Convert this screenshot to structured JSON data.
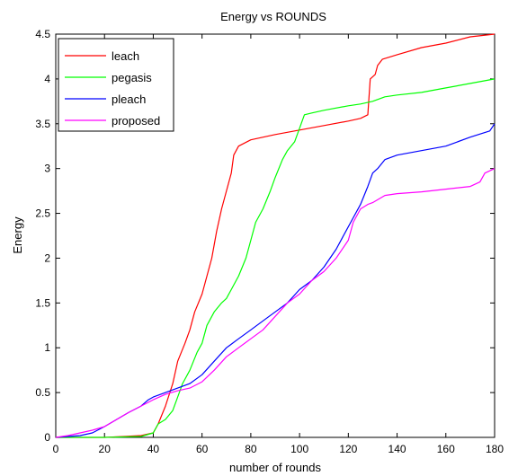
{
  "chart_data": {
    "type": "line",
    "title": "Energy vs ROUNDS",
    "xlabel": "number of rounds",
    "ylabel": "Energy",
    "xlim": [
      0,
      180
    ],
    "ylim": [
      0,
      4.5
    ],
    "xticks": [
      0,
      20,
      40,
      60,
      80,
      100,
      120,
      140,
      160,
      180
    ],
    "yticks": [
      0,
      0.5,
      1,
      1.5,
      2,
      2.5,
      3,
      3.5,
      4,
      4.5
    ],
    "xtick_labels": [
      "0",
      "20",
      "40",
      "60",
      "80",
      "100",
      "120",
      "140",
      "160",
      "180"
    ],
    "ytick_labels": [
      "0",
      "0.5",
      "1",
      "1.5",
      "2",
      "2.5",
      "3",
      "3.5",
      "4",
      "4.5"
    ],
    "grid": false,
    "legend_position": "top-left",
    "series": [
      {
        "name": "leach",
        "color": "#ff0000",
        "points": [
          [
            0,
            0
          ],
          [
            20,
            0
          ],
          [
            28,
            0.01
          ],
          [
            35,
            0.02
          ],
          [
            40,
            0.05
          ],
          [
            42,
            0.15
          ],
          [
            45,
            0.35
          ],
          [
            48,
            0.6
          ],
          [
            50,
            0.85
          ],
          [
            53,
            1.05
          ],
          [
            55,
            1.2
          ],
          [
            57,
            1.4
          ],
          [
            60,
            1.6
          ],
          [
            62,
            1.8
          ],
          [
            64,
            2.0
          ],
          [
            66,
            2.3
          ],
          [
            68,
            2.55
          ],
          [
            70,
            2.75
          ],
          [
            72,
            2.95
          ],
          [
            73,
            3.15
          ],
          [
            75,
            3.25
          ],
          [
            80,
            3.32
          ],
          [
            90,
            3.38
          ],
          [
            100,
            3.43
          ],
          [
            110,
            3.48
          ],
          [
            120,
            3.53
          ],
          [
            125,
            3.56
          ],
          [
            128,
            3.6
          ],
          [
            129,
            4.0
          ],
          [
            131,
            4.05
          ],
          [
            132,
            4.15
          ],
          [
            134,
            4.22
          ],
          [
            140,
            4.27
          ],
          [
            150,
            4.35
          ],
          [
            160,
            4.4
          ],
          [
            170,
            4.47
          ],
          [
            180,
            4.5
          ]
        ]
      },
      {
        "name": "pegasis",
        "color": "#00ff00",
        "points": [
          [
            0,
            0
          ],
          [
            20,
            0
          ],
          [
            35,
            0.01
          ],
          [
            40,
            0.05
          ],
          [
            42,
            0.15
          ],
          [
            45,
            0.2
          ],
          [
            48,
            0.3
          ],
          [
            50,
            0.45
          ],
          [
            52,
            0.6
          ],
          [
            55,
            0.75
          ],
          [
            58,
            0.95
          ],
          [
            60,
            1.05
          ],
          [
            62,
            1.25
          ],
          [
            65,
            1.4
          ],
          [
            68,
            1.5
          ],
          [
            70,
            1.55
          ],
          [
            72,
            1.65
          ],
          [
            75,
            1.8
          ],
          [
            78,
            2.0
          ],
          [
            80,
            2.2
          ],
          [
            82,
            2.4
          ],
          [
            85,
            2.55
          ],
          [
            88,
            2.75
          ],
          [
            90,
            2.9
          ],
          [
            93,
            3.1
          ],
          [
            95,
            3.2
          ],
          [
            98,
            3.3
          ],
          [
            100,
            3.45
          ],
          [
            102,
            3.6
          ],
          [
            105,
            3.62
          ],
          [
            110,
            3.65
          ],
          [
            120,
            3.7
          ],
          [
            125,
            3.72
          ],
          [
            130,
            3.75
          ],
          [
            135,
            3.8
          ],
          [
            140,
            3.82
          ],
          [
            150,
            3.85
          ],
          [
            160,
            3.9
          ],
          [
            170,
            3.95
          ],
          [
            180,
            4.0
          ]
        ]
      },
      {
        "name": "pleach",
        "color": "#0000ff",
        "points": [
          [
            0,
            0
          ],
          [
            10,
            0.02
          ],
          [
            15,
            0.05
          ],
          [
            20,
            0.12
          ],
          [
            25,
            0.2
          ],
          [
            30,
            0.28
          ],
          [
            35,
            0.35
          ],
          [
            38,
            0.42
          ],
          [
            40,
            0.45
          ],
          [
            45,
            0.5
          ],
          [
            50,
            0.55
          ],
          [
            55,
            0.6
          ],
          [
            60,
            0.7
          ],
          [
            65,
            0.85
          ],
          [
            70,
            1.0
          ],
          [
            75,
            1.1
          ],
          [
            80,
            1.2
          ],
          [
            85,
            1.3
          ],
          [
            90,
            1.4
          ],
          [
            95,
            1.5
          ],
          [
            100,
            1.65
          ],
          [
            105,
            1.75
          ],
          [
            110,
            1.9
          ],
          [
            115,
            2.1
          ],
          [
            120,
            2.35
          ],
          [
            125,
            2.6
          ],
          [
            128,
            2.8
          ],
          [
            130,
            2.95
          ],
          [
            132,
            3.0
          ],
          [
            135,
            3.1
          ],
          [
            140,
            3.15
          ],
          [
            150,
            3.2
          ],
          [
            160,
            3.25
          ],
          [
            170,
            3.35
          ],
          [
            178,
            3.42
          ],
          [
            180,
            3.5
          ]
        ]
      },
      {
        "name": "proposed",
        "color": "#ff00ff",
        "points": [
          [
            0,
            0
          ],
          [
            5,
            0.02
          ],
          [
            10,
            0.05
          ],
          [
            15,
            0.08
          ],
          [
            20,
            0.12
          ],
          [
            25,
            0.2
          ],
          [
            30,
            0.28
          ],
          [
            35,
            0.35
          ],
          [
            40,
            0.42
          ],
          [
            45,
            0.48
          ],
          [
            50,
            0.52
          ],
          [
            55,
            0.55
          ],
          [
            60,
            0.62
          ],
          [
            65,
            0.75
          ],
          [
            70,
            0.9
          ],
          [
            75,
            1.0
          ],
          [
            80,
            1.1
          ],
          [
            85,
            1.2
          ],
          [
            90,
            1.35
          ],
          [
            95,
            1.5
          ],
          [
            100,
            1.6
          ],
          [
            105,
            1.75
          ],
          [
            110,
            1.85
          ],
          [
            115,
            2.0
          ],
          [
            120,
            2.2
          ],
          [
            122,
            2.4
          ],
          [
            125,
            2.55
          ],
          [
            128,
            2.6
          ],
          [
            130,
            2.62
          ],
          [
            135,
            2.7
          ],
          [
            140,
            2.72
          ],
          [
            150,
            2.74
          ],
          [
            160,
            2.77
          ],
          [
            170,
            2.8
          ],
          [
            174,
            2.85
          ],
          [
            176,
            2.95
          ],
          [
            180,
            3.0
          ]
        ]
      }
    ]
  }
}
